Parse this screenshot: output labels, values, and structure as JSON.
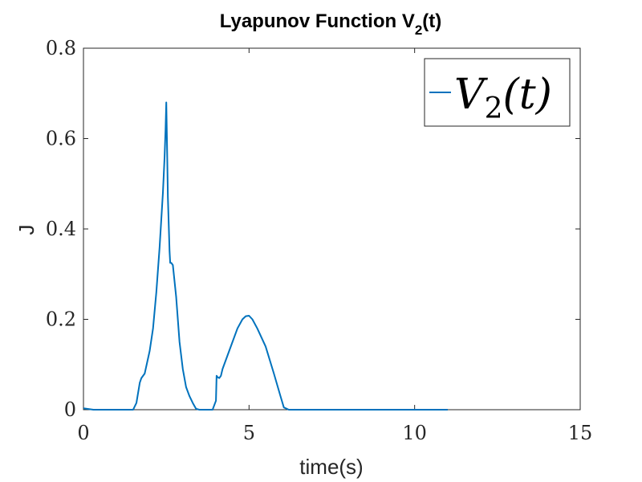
{
  "chart_data": {
    "type": "line",
    "title": "Lyapunov Function V",
    "title_subscript": "2",
    "title_suffix": "(t)",
    "xlabel": "time(s)",
    "ylabel": "J",
    "xlim": [
      0,
      15
    ],
    "ylim": [
      0,
      0.8
    ],
    "xticks": [
      0,
      5,
      10,
      15
    ],
    "yticks": [
      0,
      0.2,
      0.4,
      0.6,
      0.8
    ],
    "xtick_labels": [
      "0",
      "5",
      "10",
      "15"
    ],
    "ytick_labels": [
      "0",
      "0.2",
      "0.4",
      "0.6",
      "0.8"
    ],
    "grid": false,
    "legend_position": "top-right",
    "series": [
      {
        "name": "V2(t)",
        "legend_main": "V",
        "legend_sub": "2",
        "legend_suffix": "(t)",
        "color": "#0072BD",
        "x": [
          0,
          0.3,
          1.5,
          1.6,
          1.7,
          1.75,
          1.85,
          2.0,
          2.1,
          2.2,
          2.3,
          2.4,
          2.45,
          2.48,
          2.5,
          2.52,
          2.55,
          2.6,
          2.62,
          2.65,
          2.7,
          2.8,
          2.9,
          3.0,
          3.1,
          3.2,
          3.3,
          3.4,
          3.5,
          3.6,
          3.9,
          4.0,
          4.02,
          4.05,
          4.1,
          4.15,
          4.2,
          4.35,
          4.5,
          4.65,
          4.8,
          4.9,
          5.0,
          5.1,
          5.25,
          5.5,
          5.75,
          5.95,
          6.05,
          6.2,
          6.5,
          11.0
        ],
        "y": [
          0.003,
          0.0,
          0.0,
          0.015,
          0.06,
          0.07,
          0.08,
          0.13,
          0.18,
          0.26,
          0.36,
          0.48,
          0.56,
          0.62,
          0.68,
          0.6,
          0.47,
          0.35,
          0.325,
          0.325,
          0.32,
          0.25,
          0.15,
          0.09,
          0.05,
          0.03,
          0.015,
          0.002,
          0.0,
          0.0,
          0.0,
          0.02,
          0.075,
          0.072,
          0.07,
          0.075,
          0.09,
          0.12,
          0.15,
          0.18,
          0.2,
          0.207,
          0.208,
          0.2,
          0.18,
          0.14,
          0.08,
          0.03,
          0.005,
          0.0,
          0.0,
          0.0
        ]
      }
    ]
  }
}
